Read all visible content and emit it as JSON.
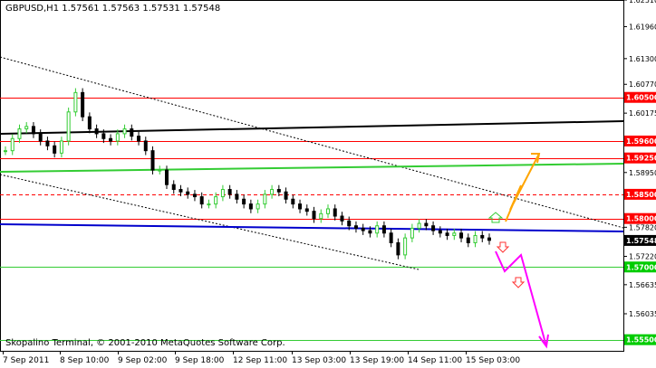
{
  "chart_header": {
    "symbol": "GBPUSD,H1",
    "ohlc": "1.57561 1.57563 1.57531 1.57548"
  },
  "copyright": "Skopalino Terminal, © 2001-2010 MetaQuotes Software Corp.",
  "colors": {
    "resistance_red": "#ff0000",
    "trend_black": "#000000",
    "green_line": "#33cc33",
    "blue_line": "#0000cc",
    "orange_arrow": "#ffa500",
    "magenta_arrow": "#ff00ff",
    "bull_candle": "#33cc33",
    "bear_candle": "#000000",
    "label_red_bg": "#ff0000",
    "label_green_bg": "#00cc00",
    "label_current_bg": "#000000"
  },
  "chart_data": {
    "type": "candlestick",
    "symbol": "GBPUSD",
    "timeframe": "H1",
    "ylim": [
      1.5527,
      1.6251
    ],
    "y_ticks": [
      "1.62510",
      "1.61960",
      "1.61300",
      "1.60770",
      "1.60175",
      "1.59550",
      "1.58950",
      "1.57820",
      "1.57220",
      "1.56635",
      "1.56035"
    ],
    "x_ticks": [
      "7 Sep 2011",
      "8 Sep 10:00",
      "9 Sep 02:00",
      "9 Sep 18:00",
      "12 Sep 11:00",
      "13 Sep 03:00",
      "13 Sep 19:00",
      "14 Sep 11:00",
      "15 Sep 03:00"
    ],
    "price_labels": [
      {
        "text": "1.60500",
        "price": 1.605,
        "bg": "red"
      },
      {
        "text": "1.59600",
        "price": 1.596,
        "bg": "red"
      },
      {
        "text": "1.59250",
        "price": 1.5925,
        "bg": "red"
      },
      {
        "text": "1.58500",
        "price": 1.585,
        "bg": "red"
      },
      {
        "text": "1.58000",
        "price": 1.58,
        "bg": "red"
      },
      {
        "text": "1.57548",
        "price": 1.57548,
        "bg": "black"
      },
      {
        "text": "1.57000",
        "price": 1.57,
        "bg": "green"
      },
      {
        "text": "1.55500",
        "price": 1.555,
        "bg": "green"
      }
    ],
    "horizontal_levels": [
      {
        "price": 1.605,
        "color": "red",
        "style": "solid"
      },
      {
        "price": 1.596,
        "color": "red",
        "style": "solid"
      },
      {
        "price": 1.5925,
        "color": "red",
        "style": "solid"
      },
      {
        "price": 1.585,
        "color": "red",
        "style": "dashed"
      },
      {
        "price": 1.58,
        "color": "red",
        "style": "solid"
      },
      {
        "price": 1.57,
        "color": "green",
        "style": "solid"
      },
      {
        "price": 1.555,
        "color": "green",
        "style": "solid"
      }
    ],
    "close_series": [
      1.594,
      1.5965,
      1.5985,
      1.599,
      1.5975,
      1.596,
      1.595,
      1.5935,
      1.596,
      1.602,
      1.606,
      1.601,
      1.5985,
      1.5975,
      1.5965,
      1.596,
      1.5975,
      1.5985,
      1.597,
      1.596,
      1.594,
      1.59,
      1.59,
      1.587,
      1.586,
      1.5855,
      1.585,
      1.5845,
      1.583,
      1.583,
      1.5845,
      1.586,
      1.585,
      1.584,
      1.583,
      1.582,
      1.583,
      1.585,
      1.586,
      1.5855,
      1.584,
      1.583,
      1.582,
      1.5815,
      1.58,
      1.581,
      1.582,
      1.5805,
      1.5795,
      1.5785,
      1.578,
      1.5775,
      1.577,
      1.5785,
      1.577,
      1.575,
      1.5725,
      1.576,
      1.578,
      1.579,
      1.5785,
      1.5775,
      1.577,
      1.5765,
      1.577,
      1.576,
      1.575,
      1.5765,
      1.576,
      1.5755
    ]
  }
}
